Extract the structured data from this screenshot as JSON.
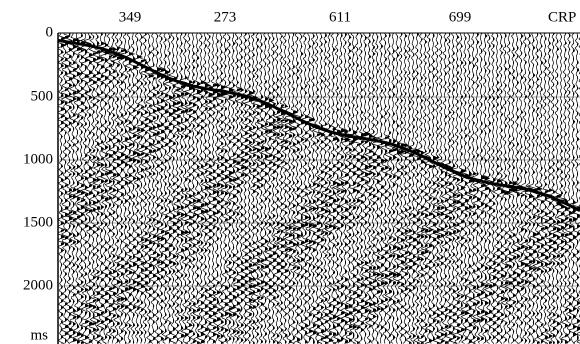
{
  "axis": {
    "top_labels": [
      "349",
      "273",
      "611",
      "699",
      "CRP"
    ],
    "left_labels": [
      "0",
      "500",
      "1000",
      "1500",
      "2000"
    ],
    "unit": "ms"
  }
}
